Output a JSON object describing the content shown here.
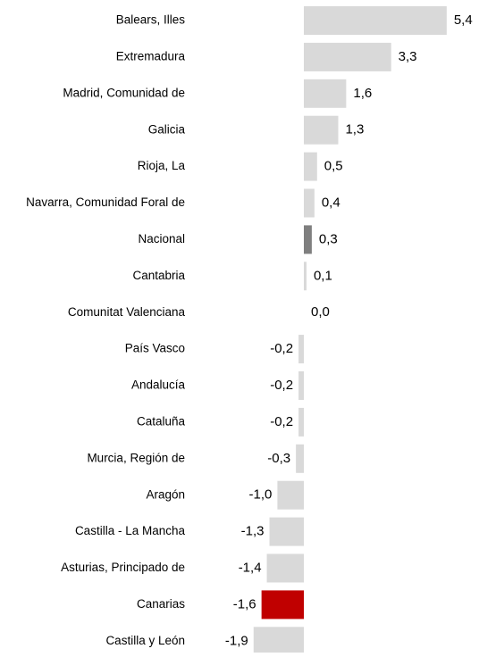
{
  "chart_data": {
    "type": "bar",
    "orientation": "horizontal",
    "categories": [
      "Balears, Illes",
      "Extremadura",
      "Madrid, Comunidad de",
      "Galicia",
      "Rioja, La",
      "Navarra, Comunidad Foral de",
      "Nacional",
      "Cantabria",
      "Comunitat Valenciana",
      "País Vasco",
      "Andalucía",
      "Cataluña",
      "Murcia, Región de",
      "Aragón",
      "Castilla - La Mancha",
      "Asturias, Principado de",
      "Canarias",
      "Castilla y León"
    ],
    "values": [
      5.4,
      3.3,
      1.6,
      1.3,
      0.5,
      0.4,
      0.3,
      0.1,
      0.0,
      -0.2,
      -0.2,
      -0.2,
      -0.3,
      -1.0,
      -1.3,
      -1.4,
      -1.6,
      -1.9
    ],
    "value_labels": [
      "5,4",
      "3,3",
      "1,6",
      "1,3",
      "0,5",
      "0,4",
      "0,3",
      "0,1",
      "0,0",
      "-0,2",
      "-0,2",
      "-0,2",
      "-0,3",
      "-1,0",
      "-1,3",
      "-1,4",
      "-1,6",
      "-1,9"
    ],
    "colors": [
      "#d9d9d9",
      "#d9d9d9",
      "#d9d9d9",
      "#d9d9d9",
      "#d9d9d9",
      "#d9d9d9",
      "#7f7f7f",
      "#d9d9d9",
      "#d9d9d9",
      "#d9d9d9",
      "#d9d9d9",
      "#d9d9d9",
      "#d9d9d9",
      "#d9d9d9",
      "#d9d9d9",
      "#d9d9d9",
      "#c00000",
      "#d9d9d9"
    ]
  }
}
